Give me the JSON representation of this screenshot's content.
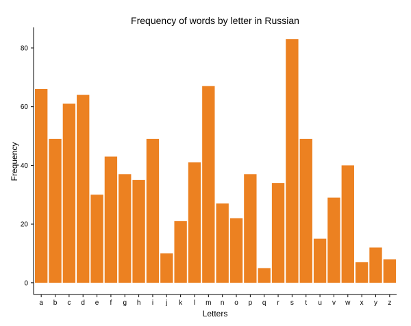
{
  "chart_data": {
    "type": "bar",
    "title": "Frequency of words by letter in Russian",
    "xlabel": "Letters",
    "ylabel": "Frequency",
    "categories": [
      "a",
      "b",
      "c",
      "d",
      "e",
      "f",
      "g",
      "h",
      "i",
      "j",
      "k",
      "l",
      "m",
      "n",
      "o",
      "p",
      "q",
      "r",
      "s",
      "t",
      "u",
      "v",
      "w",
      "x",
      "y",
      "z"
    ],
    "values": [
      66,
      49,
      61,
      64,
      30,
      43,
      37,
      35,
      49,
      10,
      21,
      41,
      67,
      27,
      22,
      37,
      5,
      34,
      83,
      49,
      15,
      29,
      40,
      7,
      12,
      8
    ],
    "ylim": [
      -4,
      87
    ],
    "yticks": [
      0,
      20,
      40,
      60,
      80
    ],
    "bar_color": "#ec8121",
    "grid": false,
    "legend": "none"
  }
}
